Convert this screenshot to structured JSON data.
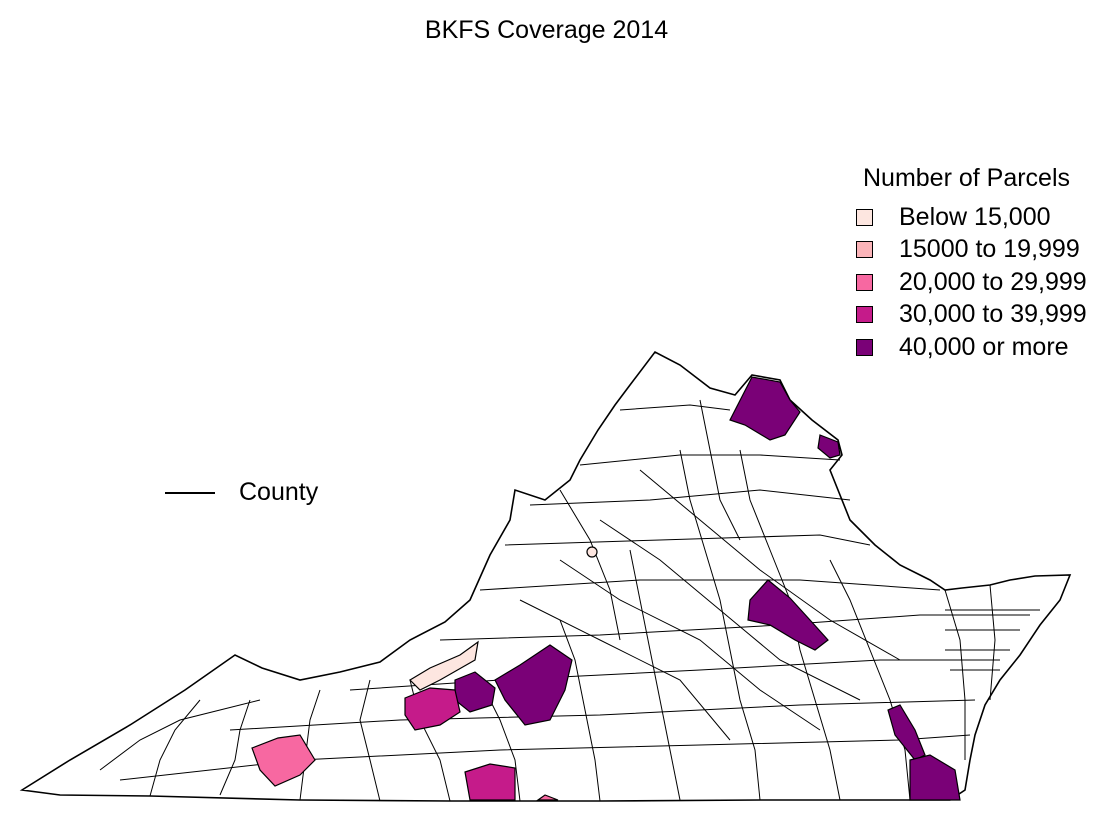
{
  "title": "BKFS Coverage 2014",
  "legend": {
    "title": "Number of Parcels",
    "items": [
      {
        "label": "Below 15,000",
        "color": "#fde6e0"
      },
      {
        "label": "15000 to 19,999",
        "color": "#fbb4b9"
      },
      {
        "label": "20,000 to 29,999",
        "color": "#f768a1"
      },
      {
        "label": "30,000 to 39,999",
        "color": "#c51b8a"
      },
      {
        "label": "40,000 or more",
        "color": "#7a0177"
      }
    ]
  },
  "line_key": {
    "label": "County"
  }
}
